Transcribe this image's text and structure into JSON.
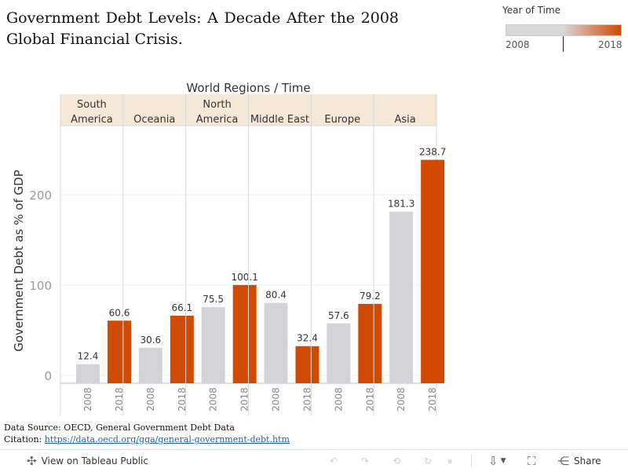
{
  "title": "Government Debt Levels: A Decade After the 2008 Global Financial Crisis.",
  "legend": {
    "title": "Year of Time",
    "min_label": "2008",
    "max_label": "2018",
    "color_low": "#d7d7d7",
    "color_high": "#d04a02"
  },
  "chart_data": {
    "type": "bar",
    "column_header": "World Regions  /  Time",
    "ylabel": "Government Debt as % of GDP",
    "ylim": [
      0,
      270
    ],
    "yticks": [
      0,
      100,
      200
    ],
    "grid": true,
    "legend_placement": "top-right",
    "regions": [
      {
        "name": "South\nAmerica",
        "values": [
          12.4,
          60.6
        ]
      },
      {
        "name": "Oceania",
        "values": [
          30.6,
          66.1
        ]
      },
      {
        "name": "North\nAmerica",
        "values": [
          75.5,
          100.1
        ]
      },
      {
        "name": "Middle East",
        "values": [
          80.4,
          32.4
        ]
      },
      {
        "name": "Europe",
        "values": [
          57.6,
          79.2
        ]
      },
      {
        "name": "Asia",
        "values": [
          181.3,
          238.7
        ]
      }
    ],
    "years": [
      "2008",
      "2018"
    ],
    "colors": {
      "2008": "#d4d4d8",
      "2018": "#d04a02"
    },
    "header_bg": "#f5e8d6"
  },
  "source": {
    "line1": "Data Source: OECD, General Government Debt Data",
    "citation_label": "Citation:",
    "citation_link": "https://data.oecd.org/gga/general-government-debt.htm"
  },
  "toolbar": {
    "view_label": "View on Tableau Public",
    "share_label": "Share"
  }
}
